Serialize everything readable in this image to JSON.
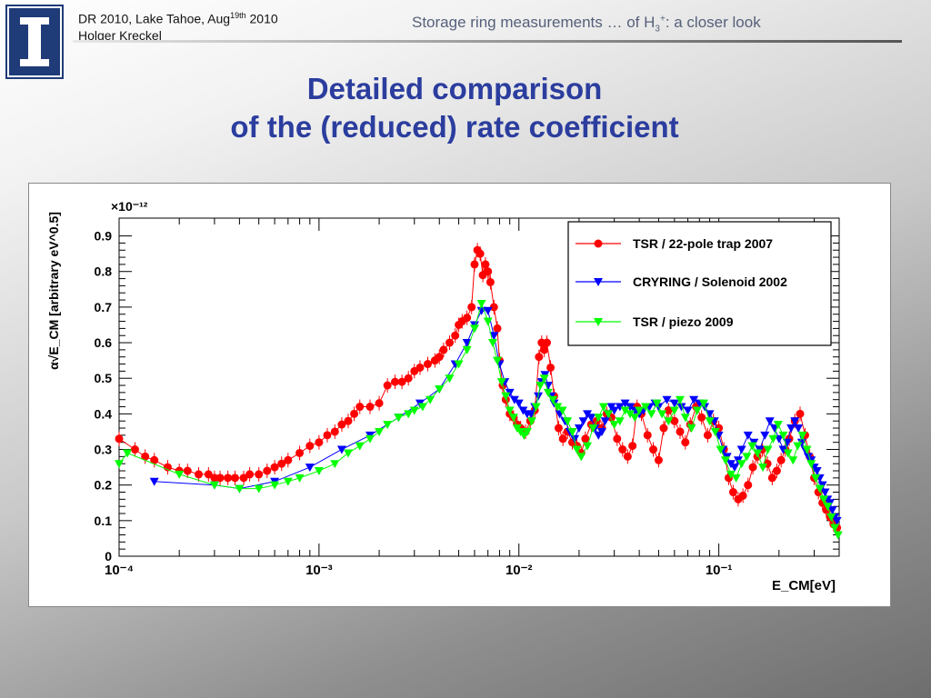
{
  "header": {
    "conference_pre": "DR 2010, Lake Tahoe, Aug",
    "conference_sup": "19th",
    "conference_post": " 2010",
    "author": "Holger Kreckel",
    "topic_pre": "Storage ring measurements … of H",
    "topic_sub": "3",
    "topic_sup": "+",
    "topic_post": ": a closer look"
  },
  "title": {
    "line1": "Detailed comparison",
    "line2": "of the (reduced) rate coefficient"
  },
  "logo": {
    "icon": "university-column-icon",
    "bg": "#1f3b78",
    "fg": "#ffffff"
  },
  "chart_data": {
    "type": "scatter",
    "xscale": "log",
    "xlim": [
      0.0001,
      0.4
    ],
    "ylim": [
      0,
      0.95
    ],
    "y_multiplier": "×10⁻¹²",
    "xlabel": "E_CM[eV]",
    "ylabel": "α√E_CM [arbitrary eV^0.5]",
    "x_ticks": [
      "10⁻⁴",
      "10⁻³",
      "10⁻²",
      "10⁻¹"
    ],
    "y_ticks": [
      "0",
      "0.1",
      "0.2",
      "0.3",
      "0.4",
      "0.5",
      "0.6",
      "0.7",
      "0.8",
      "0.9"
    ],
    "legend_position": "top-right",
    "series": [
      {
        "name": "TSR / 22-pole trap 2007",
        "color": "#ff0000",
        "marker": "circle",
        "x": [
          0.0001,
          0.00012,
          0.000135,
          0.00015,
          0.000175,
          0.0002,
          0.00022,
          0.00025,
          0.00028,
          0.0003,
          0.00032,
          0.00035,
          0.00038,
          0.00042,
          0.00045,
          0.0005,
          0.00055,
          0.0006,
          0.00065,
          0.0007,
          0.0008,
          0.0009,
          0.001,
          0.0011,
          0.0012,
          0.0013,
          0.0014,
          0.0015,
          0.0016,
          0.0018,
          0.002,
          0.0022,
          0.0024,
          0.0026,
          0.0028,
          0.003,
          0.0032,
          0.0035,
          0.0038,
          0.004,
          0.0042,
          0.0045,
          0.0048,
          0.005,
          0.0052,
          0.0055,
          0.0058,
          0.006,
          0.0062,
          0.0064,
          0.0066,
          0.0068,
          0.007,
          0.0072,
          0.0075,
          0.0078,
          0.008,
          0.0083,
          0.0086,
          0.009,
          0.0094,
          0.0098,
          0.0102,
          0.0108,
          0.0114,
          0.012,
          0.0126,
          0.013,
          0.0134,
          0.0138,
          0.0144,
          0.015,
          0.0158,
          0.0166,
          0.0175,
          0.0185,
          0.0195,
          0.0205,
          0.0215,
          0.023,
          0.0245,
          0.026,
          0.0275,
          0.029,
          0.031,
          0.033,
          0.035,
          0.037,
          0.039,
          0.041,
          0.044,
          0.047,
          0.05,
          0.053,
          0.056,
          0.06,
          0.064,
          0.068,
          0.072,
          0.077,
          0.082,
          0.088,
          0.094,
          0.1,
          0.106,
          0.112,
          0.118,
          0.125,
          0.132,
          0.14,
          0.148,
          0.156,
          0.165,
          0.175,
          0.185,
          0.195,
          0.205,
          0.215,
          0.225,
          0.24,
          0.255,
          0.27,
          0.285,
          0.3,
          0.315,
          0.33,
          0.345,
          0.36,
          0.375,
          0.39
        ],
        "y": [
          0.33,
          0.3,
          0.28,
          0.27,
          0.25,
          0.24,
          0.24,
          0.23,
          0.23,
          0.22,
          0.22,
          0.22,
          0.22,
          0.22,
          0.23,
          0.23,
          0.24,
          0.25,
          0.26,
          0.27,
          0.29,
          0.31,
          0.32,
          0.34,
          0.35,
          0.37,
          0.38,
          0.4,
          0.42,
          0.42,
          0.43,
          0.48,
          0.49,
          0.49,
          0.5,
          0.52,
          0.53,
          0.54,
          0.55,
          0.56,
          0.58,
          0.6,
          0.62,
          0.65,
          0.66,
          0.67,
          0.7,
          0.82,
          0.86,
          0.85,
          0.79,
          0.82,
          0.8,
          0.77,
          0.7,
          0.64,
          0.55,
          0.48,
          0.44,
          0.4,
          0.39,
          0.37,
          0.36,
          0.35,
          0.38,
          0.41,
          0.56,
          0.6,
          0.58,
          0.6,
          0.53,
          0.45,
          0.36,
          0.33,
          0.35,
          0.32,
          0.31,
          0.29,
          0.33,
          0.37,
          0.38,
          0.36,
          0.4,
          0.39,
          0.33,
          0.3,
          0.28,
          0.31,
          0.42,
          0.4,
          0.34,
          0.3,
          0.27,
          0.36,
          0.41,
          0.38,
          0.35,
          0.32,
          0.37,
          0.42,
          0.39,
          0.34,
          0.38,
          0.36,
          0.3,
          0.22,
          0.18,
          0.16,
          0.17,
          0.2,
          0.25,
          0.28,
          0.3,
          0.26,
          0.22,
          0.24,
          0.27,
          0.3,
          0.33,
          0.38,
          0.4,
          0.34,
          0.28,
          0.22,
          0.18,
          0.15,
          0.13,
          0.11,
          0.09,
          0.08
        ]
      },
      {
        "name": "CRYRING / Solenoid 2002",
        "color": "#0000ff",
        "marker": "triangle-down",
        "x": [
          0.00015,
          0.0003,
          0.0004,
          0.0006,
          0.0009,
          0.0013,
          0.0018,
          0.0025,
          0.0032,
          0.004,
          0.0048,
          0.0055,
          0.006,
          0.0065,
          0.007,
          0.0075,
          0.008,
          0.0085,
          0.009,
          0.0095,
          0.01,
          0.0105,
          0.011,
          0.0115,
          0.012,
          0.0125,
          0.013,
          0.0135,
          0.014,
          0.0145,
          0.015,
          0.016,
          0.017,
          0.018,
          0.019,
          0.02,
          0.021,
          0.022,
          0.023,
          0.024,
          0.025,
          0.026,
          0.027,
          0.028,
          0.029,
          0.03,
          0.032,
          0.034,
          0.036,
          0.038,
          0.04,
          0.042,
          0.045,
          0.048,
          0.05,
          0.055,
          0.06,
          0.065,
          0.07,
          0.075,
          0.08,
          0.085,
          0.09,
          0.095,
          0.1,
          0.105,
          0.11,
          0.115,
          0.12,
          0.125,
          0.13,
          0.14,
          0.15,
          0.16,
          0.17,
          0.18,
          0.19,
          0.2,
          0.21,
          0.22,
          0.23,
          0.24,
          0.25,
          0.26,
          0.27,
          0.28,
          0.29,
          0.3,
          0.31,
          0.32,
          0.33,
          0.34,
          0.35,
          0.36,
          0.37,
          0.38,
          0.39
        ],
        "y": [
          0.21,
          0.2,
          0.19,
          0.21,
          0.25,
          0.3,
          0.34,
          0.39,
          0.43,
          0.47,
          0.54,
          0.6,
          0.65,
          0.69,
          0.69,
          0.62,
          0.54,
          0.49,
          0.46,
          0.44,
          0.43,
          0.41,
          0.4,
          0.4,
          0.42,
          0.45,
          0.49,
          0.51,
          0.48,
          0.45,
          0.43,
          0.4,
          0.38,
          0.35,
          0.33,
          0.36,
          0.38,
          0.4,
          0.39,
          0.36,
          0.34,
          0.35,
          0.38,
          0.4,
          0.42,
          0.41,
          0.42,
          0.43,
          0.42,
          0.41,
          0.4,
          0.41,
          0.42,
          0.43,
          0.42,
          0.44,
          0.43,
          0.42,
          0.41,
          0.44,
          0.43,
          0.42,
          0.4,
          0.38,
          0.34,
          0.3,
          0.28,
          0.26,
          0.25,
          0.27,
          0.3,
          0.34,
          0.32,
          0.3,
          0.34,
          0.38,
          0.36,
          0.33,
          0.3,
          0.32,
          0.36,
          0.38,
          0.36,
          0.32,
          0.3,
          0.28,
          0.27,
          0.25,
          0.24,
          0.22,
          0.2,
          0.18,
          0.16,
          0.15,
          0.13,
          0.11,
          0.1
        ]
      },
      {
        "name": "TSR / piezo 2009",
        "color": "#00ff00",
        "marker": "triangle-down",
        "x": [
          0.0001,
          0.00011,
          0.0002,
          0.0003,
          0.0004,
          0.0005,
          0.0006,
          0.0007,
          0.0008,
          0.001,
          0.0012,
          0.0014,
          0.0016,
          0.0018,
          0.002,
          0.0022,
          0.0025,
          0.0028,
          0.003,
          0.0033,
          0.0036,
          0.004,
          0.0045,
          0.005,
          0.0055,
          0.006,
          0.0065,
          0.007,
          0.0074,
          0.0078,
          0.0082,
          0.0086,
          0.009,
          0.0094,
          0.0098,
          0.0102,
          0.0106,
          0.011,
          0.0116,
          0.0122,
          0.0128,
          0.0134,
          0.014,
          0.0148,
          0.0156,
          0.0165,
          0.0175,
          0.0185,
          0.0195,
          0.0205,
          0.022,
          0.0235,
          0.025,
          0.0265,
          0.028,
          0.03,
          0.032,
          0.034,
          0.036,
          0.038,
          0.04,
          0.043,
          0.046,
          0.049,
          0.052,
          0.056,
          0.06,
          0.064,
          0.068,
          0.073,
          0.078,
          0.084,
          0.09,
          0.096,
          0.102,
          0.108,
          0.115,
          0.122,
          0.13,
          0.138,
          0.147,
          0.156,
          0.166,
          0.176,
          0.187,
          0.198,
          0.21,
          0.222,
          0.235,
          0.248,
          0.262,
          0.276,
          0.29,
          0.305,
          0.32,
          0.335,
          0.35,
          0.365,
          0.38,
          0.395
        ],
        "y": [
          0.26,
          0.29,
          0.23,
          0.2,
          0.19,
          0.19,
          0.2,
          0.21,
          0.22,
          0.24,
          0.26,
          0.29,
          0.31,
          0.33,
          0.35,
          0.37,
          0.39,
          0.4,
          0.41,
          0.42,
          0.44,
          0.47,
          0.5,
          0.54,
          0.58,
          0.64,
          0.71,
          0.66,
          0.6,
          0.55,
          0.49,
          0.45,
          0.41,
          0.39,
          0.36,
          0.35,
          0.34,
          0.35,
          0.38,
          0.42,
          0.48,
          0.5,
          0.46,
          0.44,
          0.42,
          0.41,
          0.38,
          0.35,
          0.3,
          0.28,
          0.31,
          0.36,
          0.39,
          0.42,
          0.4,
          0.37,
          0.38,
          0.41,
          0.4,
          0.39,
          0.41,
          0.42,
          0.4,
          0.43,
          0.4,
          0.38,
          0.41,
          0.44,
          0.39,
          0.36,
          0.41,
          0.43,
          0.38,
          0.35,
          0.3,
          0.27,
          0.23,
          0.22,
          0.26,
          0.28,
          0.31,
          0.29,
          0.25,
          0.3,
          0.33,
          0.37,
          0.34,
          0.29,
          0.27,
          0.31,
          0.34,
          0.3,
          0.26,
          0.22,
          0.19,
          0.16,
          0.14,
          0.11,
          0.08,
          0.06
        ]
      }
    ]
  }
}
